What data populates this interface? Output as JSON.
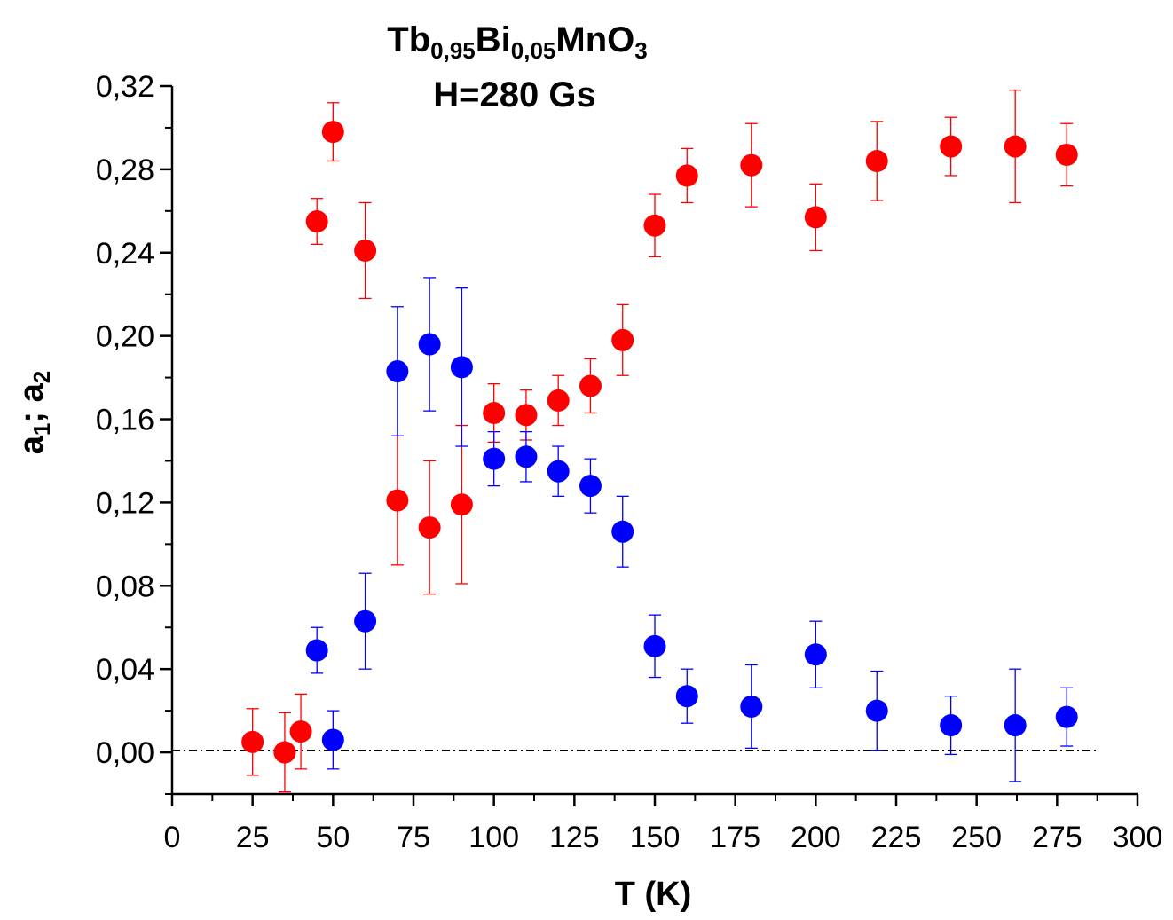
{
  "chart_data": {
    "type": "scatter",
    "title": {
      "formula": [
        {
          "text": "Tb",
          "sub": false
        },
        {
          "text": "0,95",
          "sub": true
        },
        {
          "text": "Bi",
          "sub": false
        },
        {
          "text": "0,05",
          "sub": true
        },
        {
          "text": "MnO",
          "sub": false
        },
        {
          "text": "3",
          "sub": true
        }
      ],
      "subtitle": "H=280 Gs"
    },
    "xlabel": "T (K)",
    "ylabel": [
      {
        "text": "a",
        "sub": false
      },
      {
        "text": "1",
        "sub": true
      },
      {
        "text": "; a",
        "sub": false
      },
      {
        "text": "2",
        "sub": true
      }
    ],
    "xlim": [
      0,
      300
    ],
    "ylim": [
      -0.02,
      0.32
    ],
    "xticks": [
      0,
      25,
      50,
      75,
      100,
      125,
      150,
      175,
      200,
      225,
      250,
      275,
      300
    ],
    "xtick_labels": [
      "0",
      "25",
      "50",
      "75",
      "100",
      "125",
      "150",
      "175",
      "200",
      "225",
      "250",
      "275",
      "300"
    ],
    "yticks": [
      0,
      0.04,
      0.08,
      0.12,
      0.16,
      0.2,
      0.24,
      0.28,
      0.32
    ],
    "ytick_labels": [
      "0,00",
      "0,04",
      "0,08",
      "0,12",
      "0,16",
      "0,20",
      "0,24",
      "0,28",
      "0,32"
    ],
    "grid": false,
    "reference_line": {
      "y": 0.001,
      "style": "dash-dot",
      "x_range": [
        0,
        288
      ]
    },
    "series": [
      {
        "color": "#ff0000",
        "points": [
          {
            "x": 25,
            "y": 0.005,
            "err": 0.016
          },
          {
            "x": 35,
            "y": 0.0,
            "err": 0.019
          },
          {
            "x": 40,
            "y": 0.01,
            "err": 0.018
          },
          {
            "x": 45,
            "y": 0.255,
            "err": 0.011
          },
          {
            "x": 50,
            "y": 0.298,
            "err": 0.014
          },
          {
            "x": 60,
            "y": 0.241,
            "err": 0.023
          },
          {
            "x": 70,
            "y": 0.121,
            "err": 0.031
          },
          {
            "x": 80,
            "y": 0.108,
            "err": 0.032
          },
          {
            "x": 90,
            "y": 0.119,
            "err": 0.038
          },
          {
            "x": 100,
            "y": 0.163,
            "err": 0.014
          },
          {
            "x": 110,
            "y": 0.162,
            "err": 0.012
          },
          {
            "x": 120,
            "y": 0.169,
            "err": 0.012
          },
          {
            "x": 130,
            "y": 0.176,
            "err": 0.013
          },
          {
            "x": 140,
            "y": 0.198,
            "err": 0.017
          },
          {
            "x": 150,
            "y": 0.253,
            "err": 0.015
          },
          {
            "x": 160,
            "y": 0.277,
            "err": 0.013
          },
          {
            "x": 180,
            "y": 0.282,
            "err": 0.02
          },
          {
            "x": 200,
            "y": 0.257,
            "err": 0.016
          },
          {
            "x": 219,
            "y": 0.284,
            "err": 0.019
          },
          {
            "x": 242,
            "y": 0.291,
            "err": 0.014
          },
          {
            "x": 262,
            "y": 0.291,
            "err": 0.027
          },
          {
            "x": 278,
            "y": 0.287,
            "err": 0.015
          }
        ]
      },
      {
        "color": "#0000ff",
        "points": [
          {
            "x": 45,
            "y": 0.049,
            "err": 0.011
          },
          {
            "x": 50,
            "y": 0.006,
            "err": 0.014
          },
          {
            "x": 60,
            "y": 0.063,
            "err": 0.023
          },
          {
            "x": 70,
            "y": 0.183,
            "err": 0.031
          },
          {
            "x": 80,
            "y": 0.196,
            "err": 0.032
          },
          {
            "x": 90,
            "y": 0.185,
            "err": 0.038
          },
          {
            "x": 100,
            "y": 0.141,
            "err": 0.013
          },
          {
            "x": 110,
            "y": 0.142,
            "err": 0.012
          },
          {
            "x": 120,
            "y": 0.135,
            "err": 0.012
          },
          {
            "x": 130,
            "y": 0.128,
            "err": 0.013
          },
          {
            "x": 140,
            "y": 0.106,
            "err": 0.017
          },
          {
            "x": 150,
            "y": 0.051,
            "err": 0.015
          },
          {
            "x": 160,
            "y": 0.027,
            "err": 0.013
          },
          {
            "x": 180,
            "y": 0.022,
            "err": 0.02
          },
          {
            "x": 200,
            "y": 0.047,
            "err": 0.016
          },
          {
            "x": 219,
            "y": 0.02,
            "err": 0.019
          },
          {
            "x": 242,
            "y": 0.013,
            "err": 0.014
          },
          {
            "x": 262,
            "y": 0.013,
            "err": 0.027
          },
          {
            "x": 278,
            "y": 0.017,
            "err": 0.014
          }
        ]
      }
    ]
  }
}
